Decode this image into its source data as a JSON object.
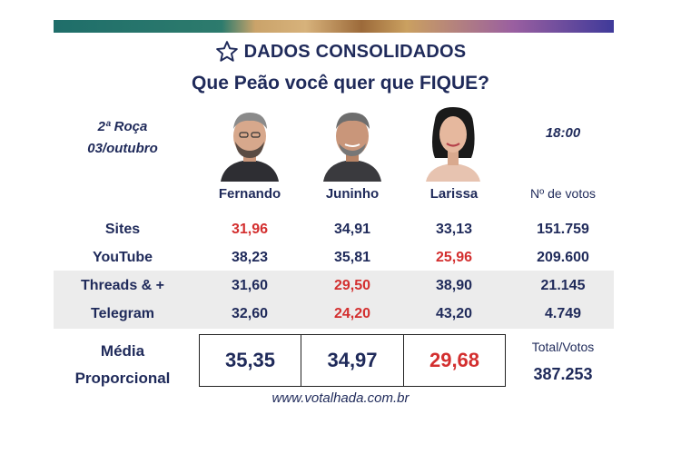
{
  "header": {
    "title": "DADOS CONSOLIDADOS",
    "subtitle": "Que Peão você quer que FIQUE?",
    "icon": "star-icon"
  },
  "info": {
    "round": "2ª Roça",
    "date": "03/outubro",
    "time": "18:00"
  },
  "candidates": [
    "Fernando",
    "Juninho",
    "Larissa"
  ],
  "votes_header": "Nº de votos",
  "rows": [
    {
      "label": "Sites",
      "values": [
        "31,96",
        "34,91",
        "33,13"
      ],
      "votes": "151.759",
      "lowest": 0
    },
    {
      "label": "YouTube",
      "values": [
        "38,23",
        "35,81",
        "25,96"
      ],
      "votes": "209.600",
      "lowest": 2
    },
    {
      "label": "Threads & +",
      "values": [
        "31,60",
        "29,50",
        "38,90"
      ],
      "votes": "21.145",
      "lowest": 1
    },
    {
      "label": "Telegram",
      "values": [
        "32,60",
        "24,20",
        "43,20"
      ],
      "votes": "4.749",
      "lowest": 1
    }
  ],
  "average": {
    "label_line1": "Média",
    "label_line2": "Proporcional",
    "values": [
      "35,35",
      "34,97",
      "29,68"
    ],
    "lowest": 2
  },
  "total": {
    "label": "Total/Votos",
    "value": "387.253"
  },
  "footer": {
    "website": "www.votalhada.com.br"
  },
  "colors": {
    "navy": "#1f2a5a",
    "red": "#d32f2f",
    "band": "#ececec"
  }
}
